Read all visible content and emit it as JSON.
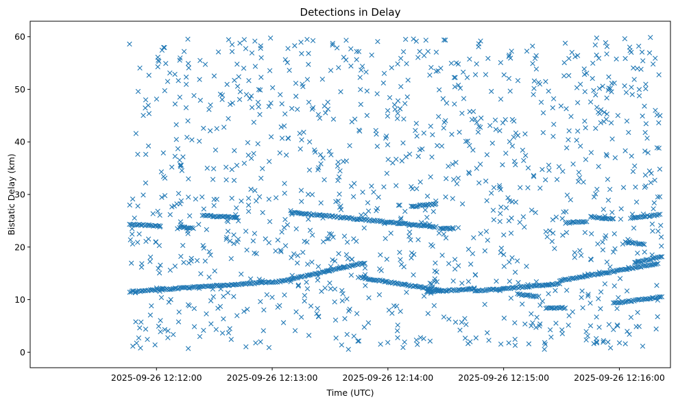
{
  "chart_data": {
    "type": "scatter",
    "title": "Detections in Delay",
    "xlabel": "Time (UTC)",
    "ylabel": "Bistatic Delay (km)",
    "x_unit": "seconds after 2025-09-26 12:11:00 UTC",
    "xlim": [
      -5.5,
      326.5
    ],
    "ylim": [
      -2.95,
      62.95
    ],
    "x_ticks": [
      {
        "value": 60,
        "label": "2025-09-26 12:12:00"
      },
      {
        "value": 120,
        "label": "2025-09-26 12:13:00"
      },
      {
        "value": 180,
        "label": "2025-09-26 12:14:00"
      },
      {
        "value": 240,
        "label": "2025-09-26 12:15:00"
      },
      {
        "value": 300,
        "label": "2025-09-26 12:16:00"
      }
    ],
    "y_ticks": [
      0,
      10,
      20,
      30,
      40,
      50,
      60
    ],
    "grid": false,
    "legend": "none",
    "marker": "x",
    "color": "#1f77b4",
    "tracks": [
      {
        "x_start": 46,
        "x_end": 125,
        "y_start": 11.5,
        "y_end": 13.5
      },
      {
        "x_start": 125,
        "x_end": 168,
        "y_start": 13.5,
        "y_end": 17.0
      },
      {
        "x_start": 166,
        "x_end": 208,
        "y_start": 14.2,
        "y_end": 11.7
      },
      {
        "x_start": 200,
        "x_end": 225,
        "y_start": 11.5,
        "y_end": 12.0
      },
      {
        "x_start": 225,
        "x_end": 269,
        "y_start": 11.6,
        "y_end": 13.0
      },
      {
        "x_start": 269,
        "x_end": 320,
        "y_start": 13.6,
        "y_end": 16.8
      },
      {
        "x_start": 308,
        "x_end": 322,
        "y_start": 17.0,
        "y_end": 18.2
      },
      {
        "x_start": 130,
        "x_end": 205,
        "y_start": 26.6,
        "y_end": 23.8
      },
      {
        "x_start": 46,
        "x_end": 62,
        "y_start": 24.3,
        "y_end": 24.0
      },
      {
        "x_start": 72,
        "x_end": 79,
        "y_start": 23.8,
        "y_end": 23.6
      },
      {
        "x_start": 84,
        "x_end": 102,
        "y_start": 26.0,
        "y_end": 25.6
      },
      {
        "x_start": 192,
        "x_end": 205,
        "y_start": 27.7,
        "y_end": 28.2
      },
      {
        "x_start": 207,
        "x_end": 214,
        "y_start": 23.5,
        "y_end": 23.5
      },
      {
        "x_start": 247,
        "x_end": 258,
        "y_start": 11.0,
        "y_end": 10.6
      },
      {
        "x_start": 262,
        "x_end": 272,
        "y_start": 8.4,
        "y_end": 8.4
      },
      {
        "x_start": 272,
        "x_end": 283,
        "y_start": 24.6,
        "y_end": 24.9
      },
      {
        "x_start": 285,
        "x_end": 297,
        "y_start": 25.8,
        "y_end": 25.3
      },
      {
        "x_start": 297,
        "x_end": 322,
        "y_start": 9.3,
        "y_end": 10.5
      },
      {
        "x_start": 303,
        "x_end": 313,
        "y_start": 20.9,
        "y_end": 20.6
      },
      {
        "x_start": 306,
        "x_end": 321,
        "y_start": 25.5,
        "y_end": 26.2
      }
    ],
    "noise": {
      "x_range": [
        46,
        322
      ],
      "y_range": [
        0.5,
        59.9
      ],
      "count": 1150
    }
  }
}
